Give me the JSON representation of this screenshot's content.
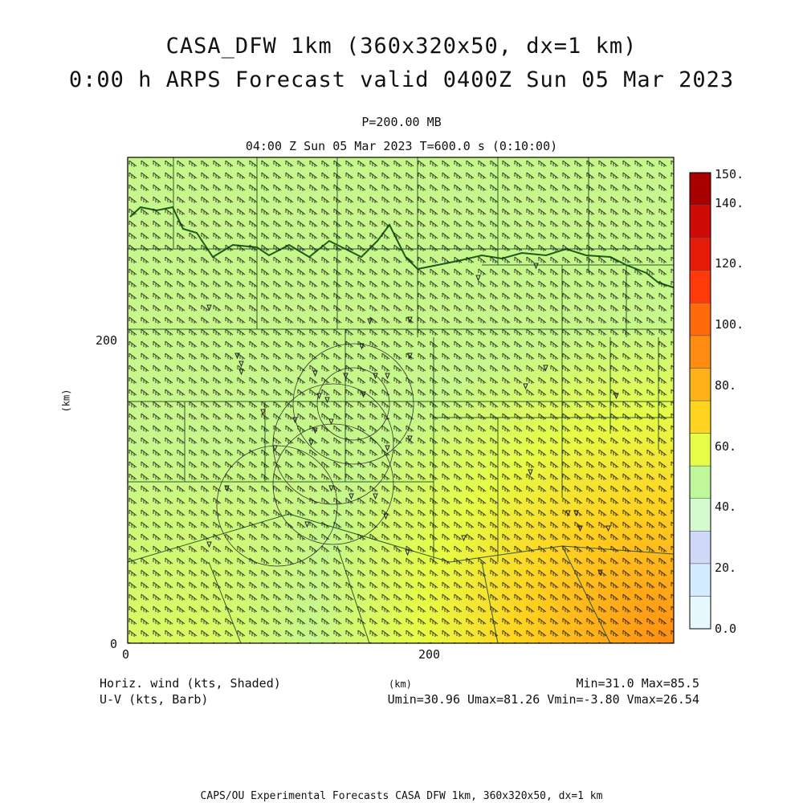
{
  "title": {
    "line1": "CASA_DFW 1km (360x320x50, dx=1 km)",
    "line2": "0:00 h ARPS Forecast valid 0400Z Sun 05 Mar 2023"
  },
  "subtitle": {
    "level": "P=200.00 MB",
    "time": "04:00 Z Sun 05 Mar 2023    T=600.0 s (0:10:00)"
  },
  "axes": {
    "x_ticks": [
      "0",
      "200"
    ],
    "y_ticks": [
      "0",
      "200"
    ],
    "x_label": "(km)",
    "y_label": "(km)"
  },
  "colorbar": {
    "labels": [
      "0.0",
      "20.",
      "40.",
      "60.",
      "80.",
      "100.",
      "120.",
      "140.",
      "150."
    ],
    "colors": [
      "#e8f8ff",
      "#d4ecff",
      "#cfd8f6",
      "#d6fad0",
      "#bff79a",
      "#e6fc46",
      "#ffd421",
      "#ffb11a",
      "#ff8c12",
      "#ff6a0c",
      "#ff3a0a",
      "#e51a08",
      "#cc0a06",
      "#a80000"
    ]
  },
  "legend": {
    "field1": "Horiz. wind (kts, Shaded)",
    "field2": "U-V (kts, Barb)",
    "minmax": "Min=31.0 Max=85.5",
    "uv_range": "Umin=30.96 Umax=81.26 Vmin=-3.80 Vmax=26.54"
  },
  "footer": "CAPS/OU Experimental Forecasts  CASA DFW 1km, 360x320x50, dx=1 km",
  "map_data": {
    "field": "horizontal wind speed",
    "units": "kts",
    "min": 31.0,
    "max": 85.5,
    "domain_km": [
      360,
      320
    ]
  }
}
